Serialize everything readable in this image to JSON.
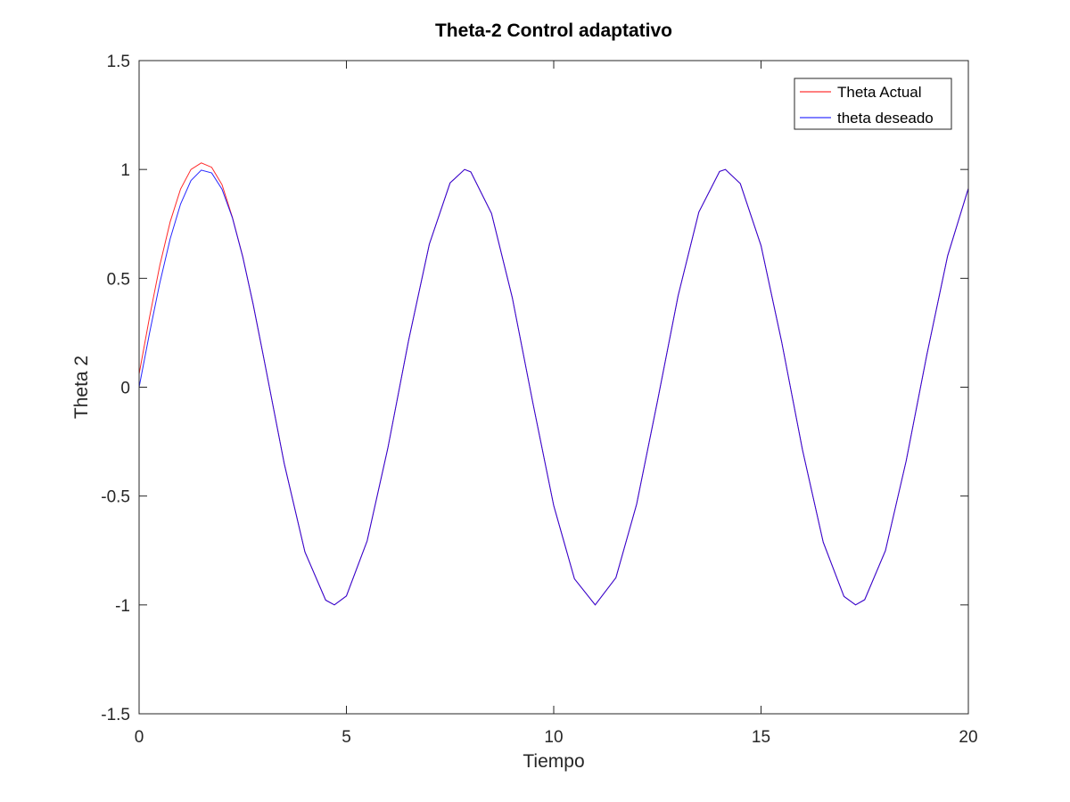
{
  "chart_data": {
    "type": "line",
    "title": "Theta-2 Control adaptativo",
    "xlabel": "Tiempo",
    "ylabel": "Theta 2",
    "xlim": [
      0,
      20
    ],
    "ylim": [
      -1.5,
      1.5
    ],
    "xticks": [
      0,
      5,
      10,
      15,
      20
    ],
    "yticks": [
      -1.5,
      -1,
      -0.5,
      0,
      0.5,
      1,
      1.5
    ],
    "xtick_labels": [
      "0",
      "5",
      "10",
      "15",
      "20"
    ],
    "ytick_labels": [
      "-1.5",
      "-1",
      "-0.5",
      "0",
      "0.5",
      "1",
      "1.5"
    ],
    "grid": false,
    "legend_position": "top-right",
    "series": [
      {
        "name": "Theta Actual",
        "color": "#ff0000",
        "x": [
          0,
          0.25,
          0.5,
          0.75,
          1.0,
          1.25,
          1.5,
          1.75,
          2.0,
          2.25,
          2.5,
          2.75,
          3.0,
          3.5,
          4.0,
          4.5,
          4.71,
          5.0,
          5.5,
          6.0,
          6.5,
          7.0,
          7.5,
          7.85,
          8.0,
          8.5,
          9.0,
          9.5,
          10.0,
          10.5,
          11.0,
          11.5,
          12.0,
          12.5,
          13.0,
          13.5,
          14.0,
          14.14,
          14.5,
          15.0,
          15.5,
          16.0,
          16.5,
          17.0,
          17.28,
          17.5,
          18.0,
          18.5,
          19.0,
          19.5,
          20.0
        ],
        "values": [
          0.06,
          0.32,
          0.56,
          0.76,
          0.91,
          1.0,
          1.03,
          1.01,
          0.93,
          0.78,
          0.6,
          0.38,
          0.14,
          -0.35,
          -0.757,
          -0.978,
          -1.0,
          -0.959,
          -0.706,
          -0.279,
          0.215,
          0.657,
          0.938,
          1.0,
          0.989,
          0.798,
          0.412,
          -0.075,
          -0.544,
          -0.88,
          -1.0,
          -0.875,
          -0.537,
          -0.066,
          0.42,
          0.804,
          0.991,
          1.0,
          0.935,
          0.65,
          0.206,
          -0.288,
          -0.712,
          -0.961,
          -1.0,
          -0.976,
          -0.751,
          -0.339,
          0.15,
          0.603,
          0.913
        ]
      },
      {
        "name": "theta deseado",
        "color": "#0000ff",
        "x": [
          0,
          0.25,
          0.5,
          0.75,
          1.0,
          1.25,
          1.5,
          1.75,
          2.0,
          2.25,
          2.5,
          2.75,
          3.0,
          3.5,
          4.0,
          4.5,
          4.71,
          5.0,
          5.5,
          6.0,
          6.5,
          7.0,
          7.5,
          7.85,
          8.0,
          8.5,
          9.0,
          9.5,
          10.0,
          10.5,
          11.0,
          11.5,
          12.0,
          12.5,
          13.0,
          13.5,
          14.0,
          14.14,
          14.5,
          15.0,
          15.5,
          16.0,
          16.5,
          17.0,
          17.28,
          17.5,
          18.0,
          18.5,
          19.0,
          19.5,
          20.0
        ],
        "values": [
          0.0,
          0.247,
          0.479,
          0.682,
          0.841,
          0.949,
          0.997,
          0.984,
          0.909,
          0.778,
          0.598,
          0.382,
          0.141,
          -0.351,
          -0.757,
          -0.978,
          -1.0,
          -0.959,
          -0.706,
          -0.279,
          0.215,
          0.657,
          0.938,
          1.0,
          0.989,
          0.798,
          0.412,
          -0.075,
          -0.544,
          -0.88,
          -1.0,
          -0.875,
          -0.537,
          -0.066,
          0.42,
          0.804,
          0.991,
          1.0,
          0.935,
          0.65,
          0.206,
          -0.288,
          -0.712,
          -0.961,
          -1.0,
          -0.976,
          -0.751,
          -0.339,
          0.15,
          0.603,
          0.913
        ]
      }
    ]
  }
}
